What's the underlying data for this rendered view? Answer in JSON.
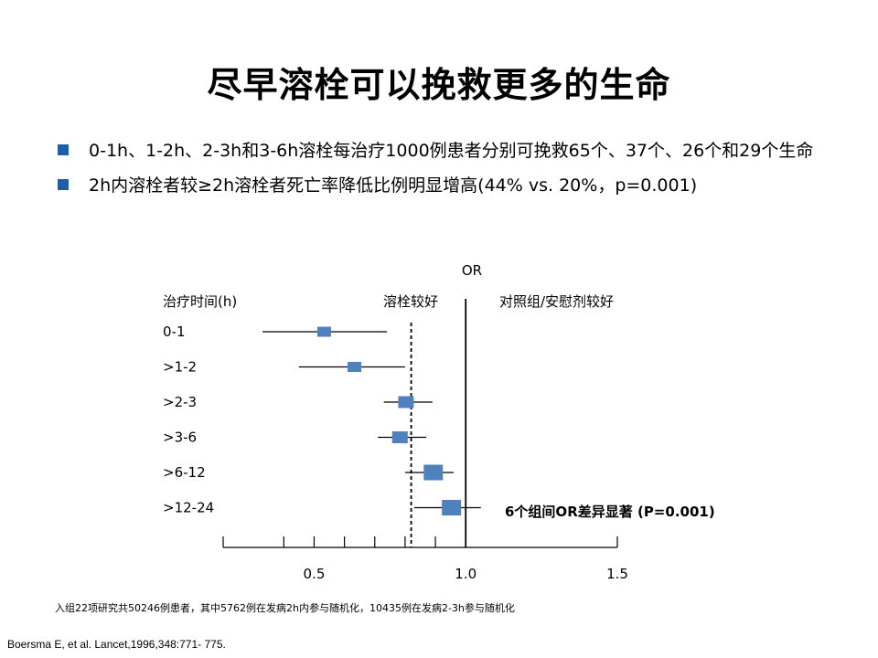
{
  "slide": {
    "title": "尽早溶栓可以挽救更多的生命",
    "bullets": [
      "0-1h、1-2h、2-3h和3-6h溶栓每治疗1000例患者分别可挽救65个、37个、26个和29个生命",
      "2h内溶栓者较≥2h溶栓者死亡率降低比例明显增高(44% vs. 20%，p=0.001)"
    ],
    "footnote": "入组22项研究共50246例患者，其中5762例在发病2h内参与随机化，10435例在发病2-3h参与随机化",
    "reference": "Boersma E, et al. Lancet,1996,348:771- 775."
  },
  "colors": {
    "marker": "#4f81bd",
    "bullet": "#1a5fa8",
    "line": "#000000"
  },
  "chart_data": {
    "type": "forest",
    "x_title": "OR",
    "row_header": "治疗时间(h)",
    "left_favors": "溶栓较好",
    "right_favors": "对照组/安慰剂较好",
    "annotation": "6个组间OR差异显著 (P=0.001)",
    "xlim": [
      0.2,
      1.5
    ],
    "xticks": [
      0.2,
      0.4,
      0.5,
      0.6,
      0.7,
      0.8,
      0.9,
      1.0,
      1.5
    ],
    "xtick_labels": [
      {
        "value": 0.5,
        "label": "0.5"
      },
      {
        "value": 1.0,
        "label": "1.0"
      },
      {
        "value": 1.5,
        "label": "1.5"
      }
    ],
    "reference_line": 1.0,
    "pooled_line": 0.82,
    "rows": [
      {
        "label": "0-1",
        "or": 0.53,
        "lower": 0.33,
        "upper": 0.74,
        "weight": 1
      },
      {
        "label": ">1-2",
        "or": 0.63,
        "lower": 0.45,
        "upper": 0.8,
        "weight": 1
      },
      {
        "label": ">2-3",
        "or": 0.8,
        "lower": 0.73,
        "upper": 0.89,
        "weight": 2
      },
      {
        "label": ">3-6",
        "or": 0.78,
        "lower": 0.71,
        "upper": 0.87,
        "weight": 2
      },
      {
        "label": ">6-12",
        "or": 0.89,
        "lower": 0.8,
        "upper": 0.96,
        "weight": 3
      },
      {
        "label": ">12-24",
        "or": 0.95,
        "lower": 0.83,
        "upper": 1.05,
        "weight": 3
      }
    ]
  }
}
